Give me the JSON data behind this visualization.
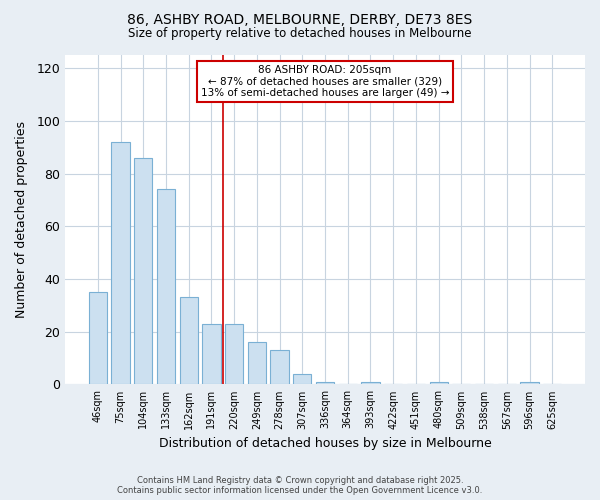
{
  "title": "86, ASHBY ROAD, MELBOURNE, DERBY, DE73 8ES",
  "subtitle": "Size of property relative to detached houses in Melbourne",
  "xlabel": "Distribution of detached houses by size in Melbourne",
  "ylabel": "Number of detached properties",
  "categories": [
    "46sqm",
    "75sqm",
    "104sqm",
    "133sqm",
    "162sqm",
    "191sqm",
    "220sqm",
    "249sqm",
    "278sqm",
    "307sqm",
    "336sqm",
    "364sqm",
    "393sqm",
    "422sqm",
    "451sqm",
    "480sqm",
    "509sqm",
    "538sqm",
    "567sqm",
    "596sqm",
    "625sqm"
  ],
  "values": [
    35,
    92,
    86,
    74,
    33,
    23,
    23,
    16,
    13,
    4,
    1,
    0,
    1,
    0,
    0,
    1,
    0,
    0,
    0,
    1,
    0
  ],
  "bar_color": "#cce0f0",
  "bar_edge_color": "#7ab0d4",
  "vline_x_index": 6,
  "vline_color": "#cc0000",
  "annotation_title": "86 ASHBY ROAD: 205sqm",
  "annotation_line1": "← 87% of detached houses are smaller (329)",
  "annotation_line2": "13% of semi-detached houses are larger (49) →",
  "annotation_box_color": "#ffffff",
  "annotation_box_edge_color": "#cc0000",
  "ylim": [
    0,
    125
  ],
  "yticks": [
    0,
    20,
    40,
    60,
    80,
    100,
    120
  ],
  "footer1": "Contains HM Land Registry data © Crown copyright and database right 2025.",
  "footer2": "Contains public sector information licensed under the Open Government Licence v3.0.",
  "background_color": "#e8eef4",
  "plot_background_color": "#ffffff",
  "grid_color": "#c8d4e0"
}
